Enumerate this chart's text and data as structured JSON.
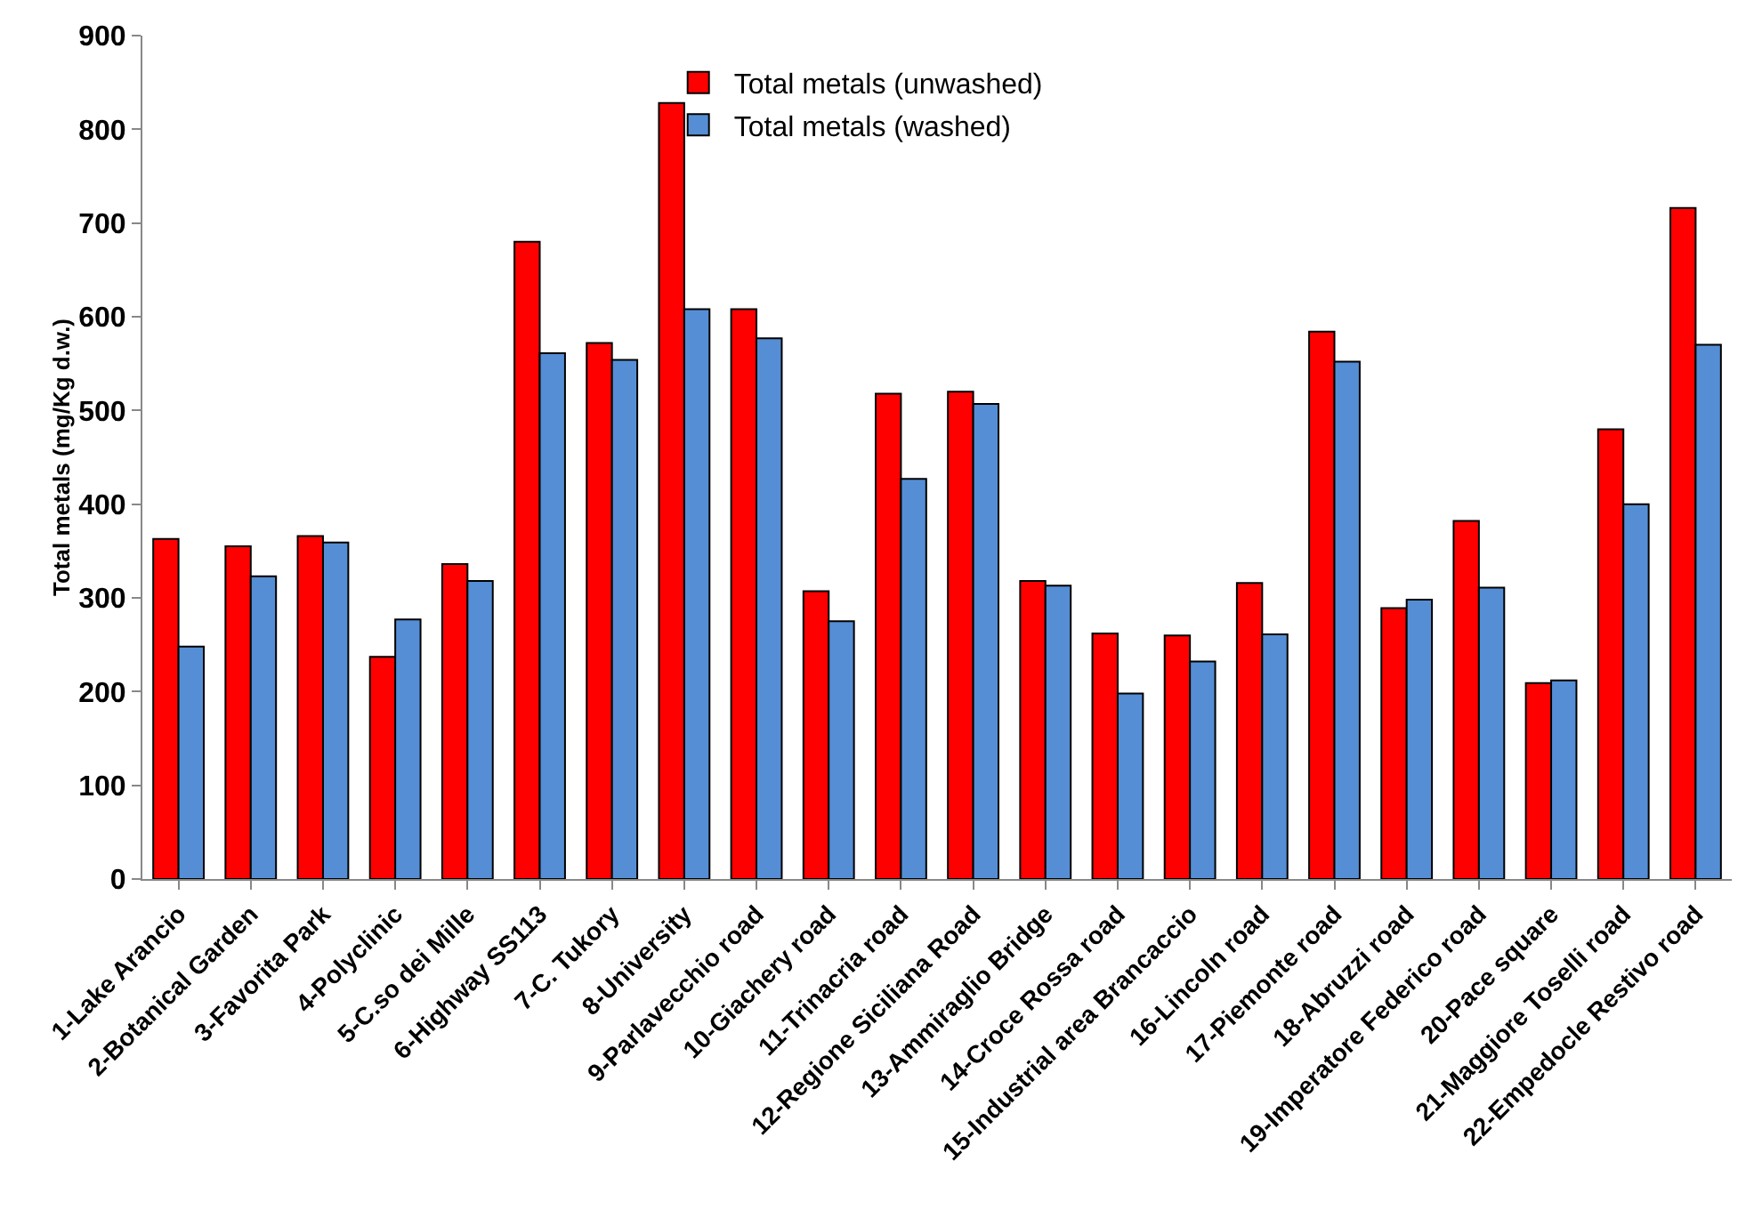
{
  "chart_data": {
    "type": "bar",
    "ylabel": "Total metals (mg/Kg d.w.)",
    "categories": [
      "1-Lake Arancio",
      "2-Botanical Garden",
      "3-Favorita Park",
      "4-Polyclinic",
      "5-C.so dei Mille",
      "6-Highway SS113",
      "7-C. Tukory",
      "8-University",
      "9-Parlavecchio road",
      "10-Giachery road",
      "11-Trinacria road",
      "12-Regione Siciliana Road",
      "13-Ammiraglio Bridge",
      "14-Croce Rossa road",
      "15-Industrial area Brancaccio",
      "16-Lincoln road",
      "17-Piemonte road",
      "18-Abruzzi road",
      "19-Imperatore Federico road",
      "20-Pace square",
      "21-Maggiore Toselli road",
      "22-Empedocle Restivo road"
    ],
    "series": [
      {
        "name": "Total metals (unwashed)",
        "color": "#ff0000",
        "values": [
          363,
          355,
          366,
          237,
          336,
          680,
          572,
          828,
          608,
          307,
          518,
          520,
          318,
          262,
          260,
          316,
          584,
          289,
          382,
          209,
          480,
          716
        ]
      },
      {
        "name": "Total metals (washed)",
        "color": "#558ed5",
        "values": [
          248,
          323,
          359,
          277,
          318,
          561,
          554,
          608,
          577,
          275,
          427,
          507,
          313,
          198,
          232,
          261,
          552,
          298,
          311,
          212,
          400,
          570
        ]
      }
    ],
    "ylim": [
      0,
      900
    ],
    "yticks": [
      0,
      100,
      200,
      300,
      400,
      500,
      600,
      700,
      800,
      900
    ],
    "grid": false,
    "legend": "top"
  }
}
